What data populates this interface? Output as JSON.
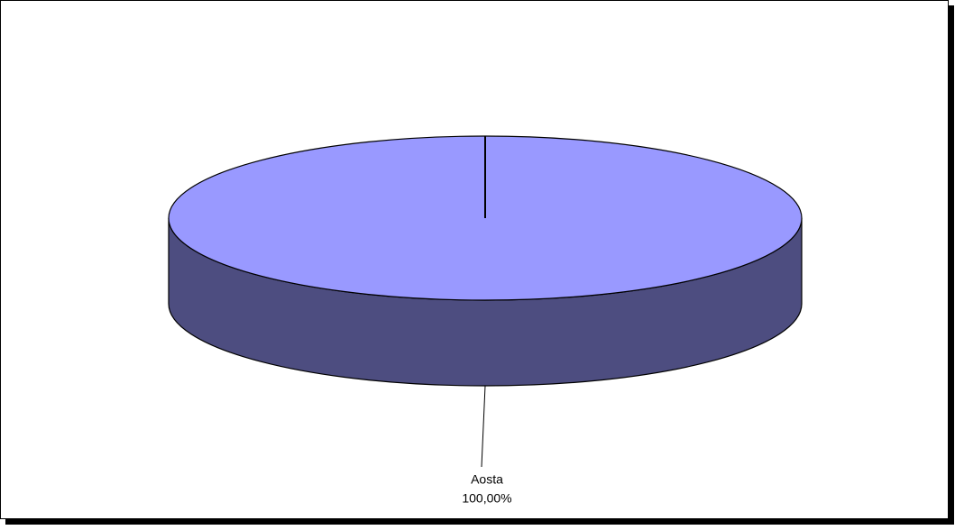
{
  "chart_data": {
    "type": "pie",
    "categories": [
      "Aosta"
    ],
    "values": [
      100
    ],
    "value_labels": [
      "100,00%"
    ],
    "colors": [
      "#9999ff"
    ]
  }
}
